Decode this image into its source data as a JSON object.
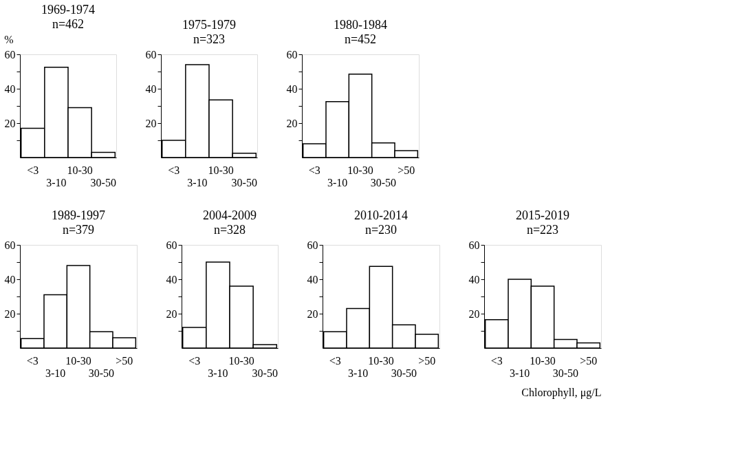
{
  "chart_data": [
    {
      "type": "bar",
      "title": "1969-1974",
      "subtitle": "n=462",
      "ylabel": "%",
      "categories": [
        "<3",
        "3-10",
        "10-30",
        "30-50"
      ],
      "values": [
        17,
        52.5,
        29,
        3
      ],
      "color": "#ffffff",
      "ylim": [
        0,
        60
      ],
      "yticks": [
        {
          "value": 10,
          "label": null
        },
        20,
        {
          "value": 30,
          "label": null
        },
        40,
        {
          "value": 50,
          "label": null
        },
        60
      ]
    },
    {
      "type": "bar",
      "title": "1975-1979",
      "subtitle": "n=323",
      "categories": [
        "<3",
        "3-10",
        "10-30",
        "30-50"
      ],
      "values": [
        10,
        54,
        33.5,
        2.5
      ],
      "color": "#ffffff",
      "ylim": [
        0,
        60
      ],
      "yticks": [
        {
          "value": 10,
          "label": null
        },
        20,
        {
          "value": 30,
          "label": null
        },
        40,
        {
          "value": 50,
          "label": null
        },
        60
      ]
    },
    {
      "type": "bar",
      "title": "1980-1984",
      "subtitle": "n=452",
      "categories": [
        "<3",
        "3-10",
        "10-30",
        "30-50",
        ">50"
      ],
      "values": [
        8,
        32.5,
        48.5,
        8.5,
        4
      ],
      "color": "#ffffff",
      "ylim": [
        0,
        60
      ],
      "yticks": [
        {
          "value": 10,
          "label": null
        },
        20,
        {
          "value": 30,
          "label": null
        },
        40,
        {
          "value": 50,
          "label": null
        },
        60
      ]
    },
    {
      "type": "bar",
      "title": "1989-1997",
      "subtitle": "n=379",
      "categories": [
        "<3",
        "3-10",
        "10-30",
        "30-50",
        ">50"
      ],
      "values": [
        5.5,
        31,
        48,
        9.5,
        6
      ],
      "color": "#ffffff",
      "ylim": [
        0,
        60
      ],
      "yticks": [
        {
          "value": 10,
          "label": null
        },
        20,
        {
          "value": 30,
          "label": null
        },
        40,
        {
          "value": 50,
          "label": null
        },
        60
      ]
    },
    {
      "type": "bar",
      "title": "2004-2009",
      "subtitle": "n=328",
      "categories": [
        "<3",
        "3-10",
        "10-30",
        "30-50"
      ],
      "values": [
        12,
        50,
        36,
        2
      ],
      "color": "#ffffff",
      "ylim": [
        0,
        60
      ],
      "yticks": [
        {
          "value": 10,
          "label": null
        },
        20,
        {
          "value": 30,
          "label": null
        },
        40,
        {
          "value": 50,
          "label": null
        },
        60
      ]
    },
    {
      "type": "bar",
      "title": "2010-2014",
      "subtitle": "n=230",
      "categories": [
        "<3",
        "3-10",
        "10-30",
        "30-50",
        ">50"
      ],
      "values": [
        9.5,
        23,
        47.5,
        13.5,
        8
      ],
      "color": "#ffffff",
      "ylim": [
        0,
        60
      ],
      "yticks": [
        {
          "value": 10,
          "label": null
        },
        20,
        {
          "value": 30,
          "label": null
        },
        40,
        {
          "value": 50,
          "label": null
        },
        60
      ]
    },
    {
      "type": "bar",
      "title": "2015-2019",
      "subtitle": "n=223",
      "xlabel": "Chlorophyll, μg/L",
      "categories": [
        "<3",
        "3-10",
        "10-30",
        "30-50",
        ">50"
      ],
      "values": [
        16.5,
        40,
        36,
        5,
        3
      ],
      "color": "#ffffff",
      "ylim": [
        0,
        60
      ],
      "yticks": [
        {
          "value": 10,
          "label": null
        },
        20,
        {
          "value": 30,
          "label": null
        },
        40,
        {
          "value": 50,
          "label": null
        },
        60
      ]
    }
  ]
}
